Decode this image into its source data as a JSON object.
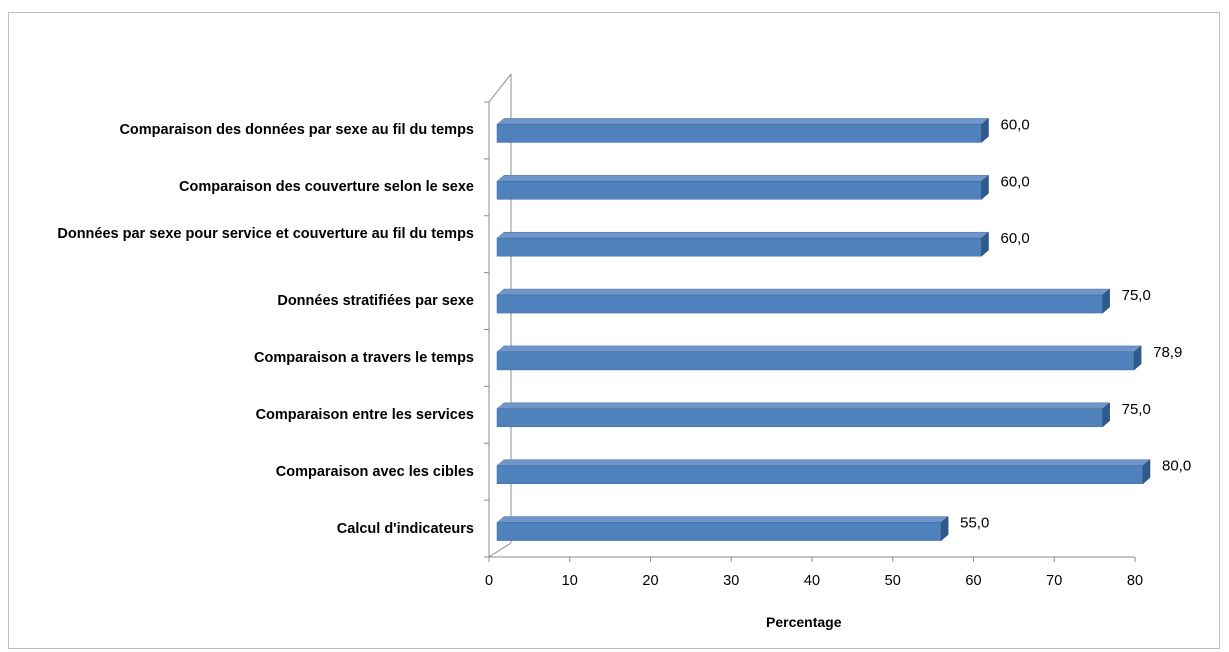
{
  "chart_data": {
    "type": "bar",
    "orientation": "horizontal",
    "style": "3d",
    "title": "",
    "xlabel": "Percentage",
    "ylabel": "",
    "xlim": [
      0,
      80
    ],
    "xticks": [
      "0",
      "10",
      "20",
      "30",
      "40",
      "50",
      "60",
      "70",
      "80"
    ],
    "grid": false,
    "legend": "none",
    "bar_color": "#4f81bd",
    "bar_top_color": "#6f95c9",
    "bar_side_color": "#2f5a8c",
    "categories": [
      "Comparaison des données par sexe au fil du temps",
      "Comparaison des couverture selon le sexe",
      "Données par sexe pour service et couverture au fil du temps",
      "Données stratifiées par sexe",
      "Comparaison a travers le temps",
      "Comparaison entre les services",
      "Comparaison avec les cibles",
      "Calcul d'indicateurs"
    ],
    "values": [
      60.0,
      60.0,
      60.0,
      75.0,
      78.9,
      75.0,
      80.0,
      55.0
    ],
    "value_labels": [
      "60,0",
      "60,0",
      "60,0",
      "75,0",
      "78,9",
      "75,0",
      "80,0",
      "55,0"
    ]
  }
}
